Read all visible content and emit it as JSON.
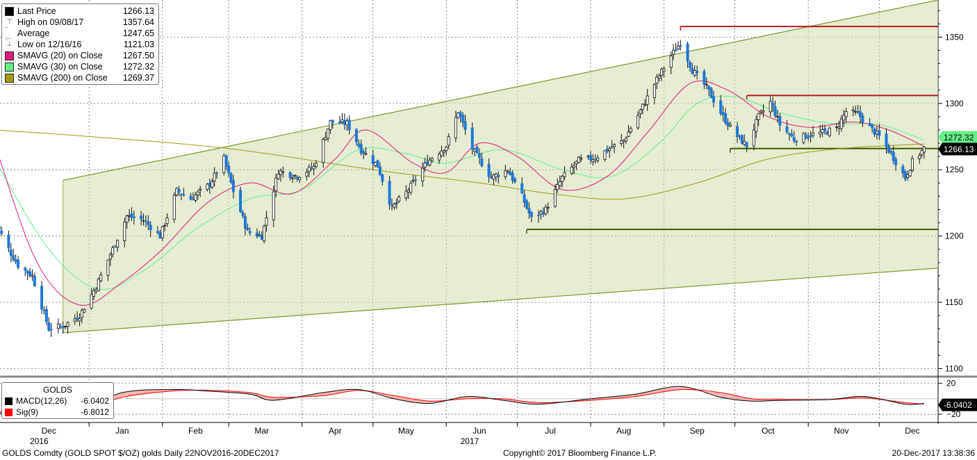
{
  "legend": {
    "rows": [
      {
        "label": "Last Price",
        "value": "1266.13",
        "swatch": "#000000",
        "kind": "box"
      },
      {
        "label": "High on 09/08/17",
        "value": "1357.64",
        "kind": "high"
      },
      {
        "label": "Average",
        "value": "1247.65",
        "kind": "avg"
      },
      {
        "label": "Low on 12/16/16",
        "value": "1121.03",
        "kind": "low"
      },
      {
        "label": "SMAVG (20) on Close",
        "value": "1267.50",
        "swatch": "#e0197d",
        "kind": "box"
      },
      {
        "label": "SMAVG (30) on Close",
        "value": "1272.32",
        "swatch": "#66ee88",
        "kind": "box"
      },
      {
        "label": "SMAVG (200) on Close",
        "value": "1269.37",
        "swatch": "#a39a13",
        "kind": "box"
      }
    ]
  },
  "macd_legend": {
    "title": "GOLDS",
    "rows": [
      {
        "label": "MACD(12,26)",
        "value": "-6.0402",
        "swatch": "#000000"
      },
      {
        "label": "Sig(9)",
        "value": "-6.8012",
        "swatch": "#ff0000"
      }
    ]
  },
  "footer": {
    "left": "GOLDS Comdty (GOLD SPOT $/OZ) golds  Daily 22NOV2016-20DEC2017",
    "center": "Copyright© 2017 Bloomberg Finance L.P.",
    "right": "20-Dec-2017 13:38:36"
  },
  "chart_data": [
    {
      "type": "candlestick",
      "title": "GOLDS Comdty (GOLD SPOT $/OZ)",
      "period": "Daily 22NOV2016-20DEC2017",
      "x_tick_labels": [
        "Dec",
        "Jan",
        "Feb",
        "Mar",
        "Apr",
        "May",
        "Jun",
        "Jul",
        "Aug",
        "Sep",
        "Oct",
        "Nov",
        "Dec"
      ],
      "year_labels": [
        {
          "label": "2016",
          "at": "Dec"
        },
        {
          "label": "2017",
          "at": "Jun"
        }
      ],
      "y_ticks": [
        1100,
        1150,
        1200,
        1250,
        1300,
        1350
      ],
      "ylim": [
        1095,
        1378
      ],
      "y_axis_side": "right",
      "grid": true,
      "last_price_tag": "1266.13",
      "sma30_tag": "1272.32",
      "anchors": [
        [
          "2016-11-22",
          1212
        ],
        [
          "2016-11-28",
          1190
        ],
        [
          "2016-12-02",
          1178
        ],
        [
          "2016-12-08",
          1170
        ],
        [
          "2016-12-15",
          1130
        ],
        [
          "2016-12-21",
          1132
        ],
        [
          "2016-12-28",
          1140
        ],
        [
          "2017-01-04",
          1162
        ],
        [
          "2017-01-11",
          1190
        ],
        [
          "2017-01-17",
          1215
        ],
        [
          "2017-01-24",
          1212
        ],
        [
          "2017-01-31",
          1200
        ],
        [
          "2017-02-07",
          1234
        ],
        [
          "2017-02-13",
          1228
        ],
        [
          "2017-02-21",
          1239
        ],
        [
          "2017-02-27",
          1258
        ],
        [
          "2017-03-03",
          1234
        ],
        [
          "2017-03-09",
          1203
        ],
        [
          "2017-03-15",
          1200
        ],
        [
          "2017-03-22",
          1249
        ],
        [
          "2017-03-30",
          1245
        ],
        [
          "2017-04-06",
          1252
        ],
        [
          "2017-04-13",
          1286
        ],
        [
          "2017-04-20",
          1285
        ],
        [
          "2017-04-26",
          1265
        ],
        [
          "2017-05-03",
          1253
        ],
        [
          "2017-05-09",
          1221
        ],
        [
          "2017-05-16",
          1235
        ],
        [
          "2017-05-24",
          1256
        ],
        [
          "2017-06-01",
          1268
        ],
        [
          "2017-06-06",
          1294
        ],
        [
          "2017-06-12",
          1266
        ],
        [
          "2017-06-20",
          1244
        ],
        [
          "2017-06-27",
          1250
        ],
        [
          "2017-07-03",
          1230
        ],
        [
          "2017-07-07",
          1213
        ],
        [
          "2017-07-13",
          1220
        ],
        [
          "2017-07-20",
          1244
        ],
        [
          "2017-07-27",
          1257
        ],
        [
          "2017-08-03",
          1259
        ],
        [
          "2017-08-09",
          1266
        ],
        [
          "2017-08-15",
          1272
        ],
        [
          "2017-08-21",
          1291
        ],
        [
          "2017-08-29",
          1318
        ],
        [
          "2017-09-04",
          1336
        ],
        [
          "2017-09-08",
          1346
        ],
        [
          "2017-09-13",
          1325
        ],
        [
          "2017-09-19",
          1312
        ],
        [
          "2017-09-26",
          1290
        ],
        [
          "2017-10-01",
          1277
        ],
        [
          "2017-10-06",
          1268
        ],
        [
          "2017-10-11",
          1290
        ],
        [
          "2017-10-16",
          1301
        ],
        [
          "2017-10-20",
          1284
        ],
        [
          "2017-10-26",
          1273
        ],
        [
          "2017-11-01",
          1276
        ],
        [
          "2017-11-07",
          1278
        ],
        [
          "2017-11-13",
          1281
        ],
        [
          "2017-11-17",
          1294
        ],
        [
          "2017-11-22",
          1292
        ],
        [
          "2017-11-27",
          1282
        ],
        [
          "2017-12-01",
          1275
        ],
        [
          "2017-12-06",
          1262
        ],
        [
          "2017-12-12",
          1244
        ],
        [
          "2017-12-15",
          1256
        ],
        [
          "2017-12-20",
          1266
        ]
      ],
      "sma20": [
        [
          "2016-11-22",
          1270
        ],
        [
          "2016-12-10",
          1180
        ],
        [
          "2016-12-28",
          1148
        ],
        [
          "2017-01-15",
          1165
        ],
        [
          "2017-02-01",
          1190
        ],
        [
          "2017-02-20",
          1225
        ],
        [
          "2017-03-10",
          1240
        ],
        [
          "2017-03-28",
          1232
        ],
        [
          "2017-04-15",
          1258
        ],
        [
          "2017-04-28",
          1280
        ],
        [
          "2017-05-18",
          1255
        ],
        [
          "2017-06-01",
          1248
        ],
        [
          "2017-06-15",
          1270
        ],
        [
          "2017-07-01",
          1260
        ],
        [
          "2017-07-20",
          1235
        ],
        [
          "2017-08-08",
          1245
        ],
        [
          "2017-08-25",
          1278
        ],
        [
          "2017-09-12",
          1315
        ],
        [
          "2017-09-28",
          1310
        ],
        [
          "2017-10-15",
          1290
        ],
        [
          "2017-11-01",
          1282
        ],
        [
          "2017-11-20",
          1286
        ],
        [
          "2017-12-05",
          1280
        ],
        [
          "2017-12-20",
          1267.5
        ]
      ],
      "sma30": [
        [
          "2016-11-22",
          1258
        ],
        [
          "2016-12-15",
          1190
        ],
        [
          "2017-01-05",
          1160
        ],
        [
          "2017-01-25",
          1175
        ],
        [
          "2017-02-15",
          1205
        ],
        [
          "2017-03-10",
          1228
        ],
        [
          "2017-04-01",
          1235
        ],
        [
          "2017-04-25",
          1265
        ],
        [
          "2017-05-15",
          1262
        ],
        [
          "2017-06-01",
          1255
        ],
        [
          "2017-06-25",
          1265
        ],
        [
          "2017-07-20",
          1250
        ],
        [
          "2017-08-10",
          1245
        ],
        [
          "2017-08-30",
          1270
        ],
        [
          "2017-09-15",
          1300
        ],
        [
          "2017-10-01",
          1305
        ],
        [
          "2017-10-20",
          1293
        ],
        [
          "2017-11-10",
          1285
        ],
        [
          "2017-12-01",
          1284
        ],
        [
          "2017-12-20",
          1272.32
        ]
      ],
      "sma200": [
        [
          "2016-11-22",
          1280
        ],
        [
          "2017-01-01",
          1275
        ],
        [
          "2017-03-01",
          1266
        ],
        [
          "2017-05-01",
          1250
        ],
        [
          "2017-06-15",
          1240
        ],
        [
          "2017-07-15",
          1232
        ],
        [
          "2017-08-15",
          1228
        ],
        [
          "2017-09-15",
          1240
        ],
        [
          "2017-10-15",
          1258
        ],
        [
          "2017-11-15",
          1266
        ],
        [
          "2017-12-20",
          1269.37
        ]
      ],
      "channel": {
        "start_date": "2016-12-21",
        "end_date": "2017-12-20",
        "upper": [
          1242,
          1287
        ],
        "lower": [
          1127,
          1175
        ]
      },
      "levels": [
        {
          "value": 1358,
          "from": "2017-09-08",
          "to": "2017-12-20",
          "color": "#b01c22"
        },
        {
          "value": 1306,
          "from": "2017-10-06",
          "to": "2017-12-20",
          "color": "#b01c22"
        },
        {
          "value": 1266,
          "from": "2017-09-29",
          "to": "2017-12-20",
          "color": "#3d5c00"
        },
        {
          "value": 1205,
          "from": "2017-07-05",
          "to": "2017-12-20",
          "color": "#3d5c00"
        }
      ]
    },
    {
      "type": "line",
      "title": "GOLDS",
      "series": [
        {
          "name": "MACD(12,26)",
          "last": -6.0402
        },
        {
          "name": "Sig(9)",
          "last": -6.8012
        }
      ],
      "y_ticks": [
        20,
        0,
        -20
      ],
      "ylim": [
        -28,
        26
      ],
      "last_tag": "-6.0402",
      "macd": [
        [
          "2016-11-22",
          -18
        ],
        [
          "2016-12-10",
          -22
        ],
        [
          "2016-12-28",
          -15
        ],
        [
          "2017-01-15",
          8
        ],
        [
          "2017-02-05",
          12
        ],
        [
          "2017-02-20",
          10
        ],
        [
          "2017-03-10",
          6
        ],
        [
          "2017-03-20",
          -2
        ],
        [
          "2017-04-10",
          8
        ],
        [
          "2017-04-25",
          12
        ],
        [
          "2017-05-10",
          0
        ],
        [
          "2017-05-25",
          -6
        ],
        [
          "2017-06-10",
          3
        ],
        [
          "2017-06-25",
          -2
        ],
        [
          "2017-07-10",
          -7
        ],
        [
          "2017-08-01",
          0
        ],
        [
          "2017-08-20",
          6
        ],
        [
          "2017-09-08",
          16
        ],
        [
          "2017-09-25",
          2
        ],
        [
          "2017-10-08",
          -3
        ],
        [
          "2017-10-20",
          -2
        ],
        [
          "2017-11-10",
          -1
        ],
        [
          "2017-11-25",
          3
        ],
        [
          "2017-12-12",
          -7
        ],
        [
          "2017-12-20",
          -6.0402
        ]
      ],
      "signal": [
        [
          "2016-11-22",
          -16
        ],
        [
          "2016-12-10",
          -21
        ],
        [
          "2016-12-28",
          -18
        ],
        [
          "2017-01-15",
          2
        ],
        [
          "2017-02-05",
          10
        ],
        [
          "2017-02-20",
          11
        ],
        [
          "2017-03-10",
          8
        ],
        [
          "2017-03-20",
          2
        ],
        [
          "2017-04-10",
          4
        ],
        [
          "2017-04-25",
          11
        ],
        [
          "2017-05-10",
          4
        ],
        [
          "2017-05-25",
          -3
        ],
        [
          "2017-06-10",
          0
        ],
        [
          "2017-06-25",
          0
        ],
        [
          "2017-07-10",
          -5
        ],
        [
          "2017-08-01",
          -2
        ],
        [
          "2017-08-20",
          3
        ],
        [
          "2017-09-08",
          12
        ],
        [
          "2017-09-25",
          8
        ],
        [
          "2017-10-08",
          0
        ],
        [
          "2017-10-20",
          -1
        ],
        [
          "2017-11-10",
          -1
        ],
        [
          "2017-11-25",
          1
        ],
        [
          "2017-12-12",
          -5
        ],
        [
          "2017-12-20",
          -6.8012
        ]
      ]
    }
  ]
}
